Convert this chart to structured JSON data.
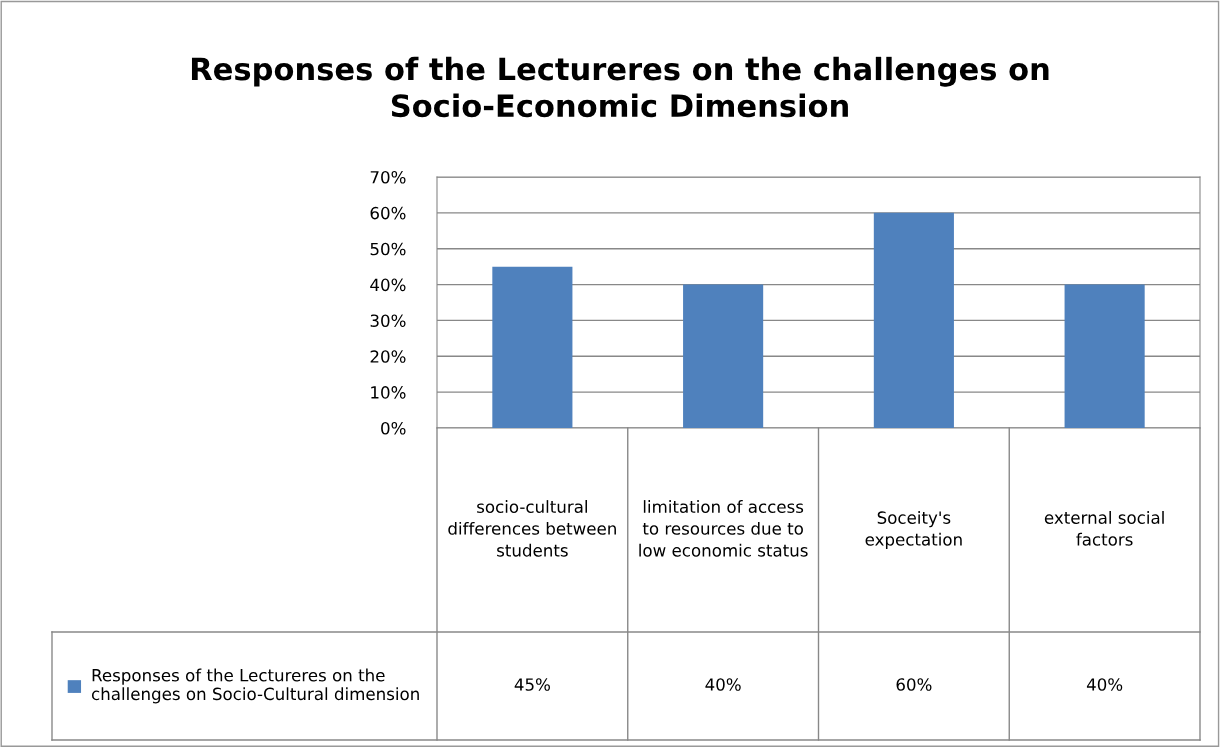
{
  "chart_data": {
    "type": "bar",
    "title": "Responses of the Lectureres on the challenges on Socio-Economic Dimension",
    "categories": [
      "socio-cultural differences between students",
      "limitation of access to resources due to low economic status",
      "Soceity's expectation",
      "external social factors"
    ],
    "series": [
      {
        "name": "Responses of the Lectureres on the challenges on Socio-Cultural dimension",
        "color": "#4f81bd",
        "values": [
          45,
          40,
          60,
          40
        ],
        "value_labels": [
          "45%",
          "40%",
          "60%",
          "40%"
        ]
      }
    ],
    "ylim": [
      0,
      70
    ],
    "yticks": [
      {
        "value": 0,
        "label": "0%"
      },
      {
        "value": 10,
        "label": "10%"
      },
      {
        "value": 20,
        "label": "20%"
      },
      {
        "value": 30,
        "label": "30%"
      },
      {
        "value": 40,
        "label": "40%"
      },
      {
        "value": 50,
        "label": "50%"
      },
      {
        "value": 60,
        "label": "60%"
      },
      {
        "value": 70,
        "label": "70%"
      }
    ],
    "grid": "y",
    "legend": "bottom"
  }
}
